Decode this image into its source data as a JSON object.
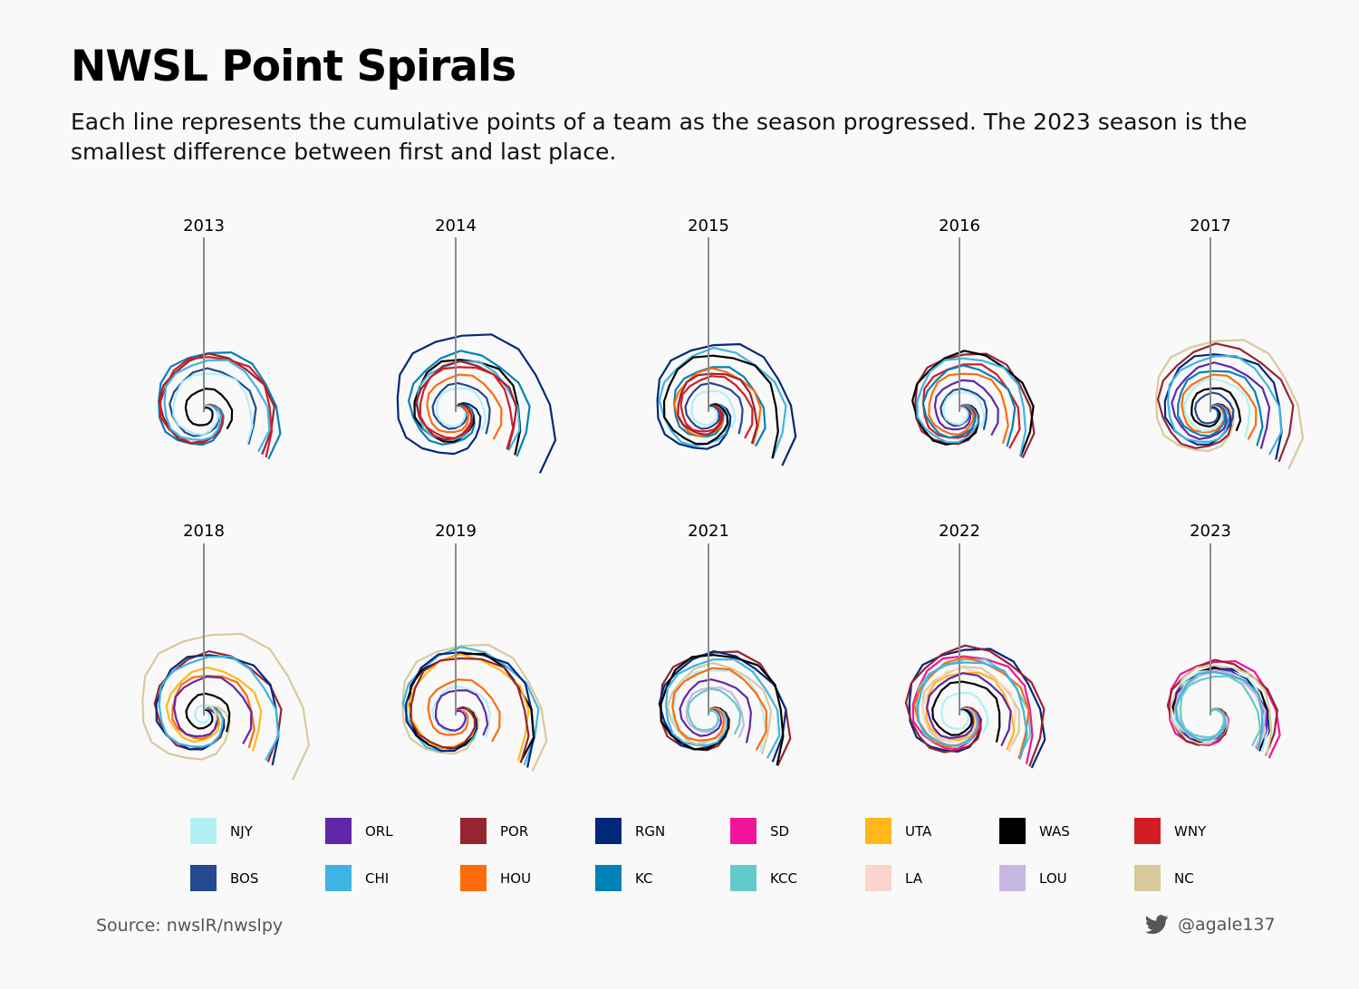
{
  "title": "NWSL Point Spirals",
  "subtitle": "Each line represents the cumulative points of a team as the season progressed. The 2023 season is the smallest difference between first and last place.",
  "source": "Source: nwslR/nwslpy",
  "credit": "@agale137",
  "credit_icon": "twitter-bird-icon",
  "chart_data": {
    "type": "line",
    "projection": "polar-spiral",
    "description_of_encoding": "",
    "panels": [
      {
        "title": "2013",
        "teams": [
          "KC",
          "POR",
          "WNY",
          "CHI",
          "BOS",
          "NJY",
          "WAS"
        ],
        "totals": [
          41,
          38,
          38,
          35,
          28,
          26,
          14
        ]
      },
      {
        "title": "2014",
        "teams": [
          "RGN",
          "KC",
          "WAS",
          "CHI",
          "POR",
          "WNY",
          "HOU",
          "BOS",
          "NJY"
        ],
        "totals": [
          54,
          40,
          36,
          34,
          33,
          31,
          24,
          18,
          15
        ]
      },
      {
        "title": "2015",
        "teams": [
          "RGN",
          "CHI",
          "WAS",
          "KC",
          "HOU",
          "POR",
          "WNY",
          "BOS",
          "NJY"
        ],
        "totals": [
          47,
          42,
          39,
          30,
          28,
          26,
          23,
          18,
          13
        ]
      },
      {
        "title": "2016",
        "teams": [
          "POR",
          "WAS",
          "CHI",
          "WNY",
          "KC",
          "HOU",
          "ORL",
          "BOS",
          "NJY"
        ],
        "totals": [
          40,
          40,
          37,
          32,
          30,
          26,
          20,
          14,
          12
        ]
      },
      {
        "title": "2017",
        "teams": [
          "NC",
          "POR",
          "RGN",
          "CHI",
          "ORL",
          "KC",
          "HOU",
          "NJY",
          "WAS",
          "BOS"
        ],
        "totals": [
          50,
          45,
          40,
          38,
          32,
          28,
          24,
          21,
          15,
          11
        ]
      },
      {
        "title": "2018",
        "teams": [
          "NC",
          "POR",
          "RGN",
          "CHI",
          "UTA",
          "HOU",
          "ORL",
          "WAS",
          "NJY"
        ],
        "totals": [
          57,
          42,
          42,
          40,
          31,
          27,
          25,
          13,
          5
        ]
      },
      {
        "title": "2019",
        "teams": [
          "NC",
          "CHI",
          "RGN",
          "WAS",
          "UTA",
          "POR",
          "HOU",
          "NJY",
          "ORL"
        ],
        "totals": [
          49,
          45,
          44,
          42,
          40,
          40,
          23,
          18,
          16
        ]
      },
      {
        "title": "2021",
        "teams": [
          "POR",
          "RGN",
          "WAS",
          "CHI",
          "NC",
          "NJY",
          "HOU",
          "ORL",
          "LOU",
          "KCC"
        ],
        "totals": [
          44,
          42,
          42,
          38,
          34,
          31,
          31,
          23,
          18,
          16
        ]
      },
      {
        "title": "2022",
        "teams": [
          "RGN",
          "POR",
          "SD",
          "KCC",
          "HOU",
          "CHI",
          "NC",
          "LA",
          "UTA",
          "ORL",
          "WAS",
          "NJY"
        ],
        "totals": [
          46,
          46,
          41,
          38,
          38,
          37,
          32,
          31,
          29,
          27,
          22,
          14
        ]
      },
      {
        "title": "2023",
        "teams": [
          "SD",
          "POR",
          "NC",
          "RGN",
          "WAS",
          "NJY",
          "ORL",
          "HOU",
          "LA",
          "LOU",
          "CHI",
          "KCC"
        ],
        "totals": [
          37,
          36,
          34,
          31,
          31,
          31,
          30,
          29,
          29,
          29,
          29,
          26
        ]
      }
    ],
    "legend": [
      {
        "label": "NJY",
        "color": "#b0f0f5"
      },
      {
        "label": "ORL",
        "color": "#6127a8"
      },
      {
        "label": "POR",
        "color": "#962431"
      },
      {
        "label": "RGN",
        "color": "#00297a"
      },
      {
        "label": "SD",
        "color": "#f0149b"
      },
      {
        "label": "UTA",
        "color": "#ffb71b"
      },
      {
        "label": "WAS",
        "color": "#000000"
      },
      {
        "label": "WNY",
        "color": "#d41c24"
      },
      {
        "label": "BOS",
        "color": "#25488f"
      },
      {
        "label": "CHI",
        "color": "#3fb4e3"
      },
      {
        "label": "HOU",
        "color": "#ff6b0a"
      },
      {
        "label": "KC",
        "color": "#0081b8"
      },
      {
        "label": "KCC",
        "color": "#62cbc9"
      },
      {
        "label": "LA",
        "color": "#fbd5cd"
      },
      {
        "label": "LOU",
        "color": "#c7b7e3"
      },
      {
        "label": "NC",
        "color": "#dac99b"
      }
    ]
  }
}
